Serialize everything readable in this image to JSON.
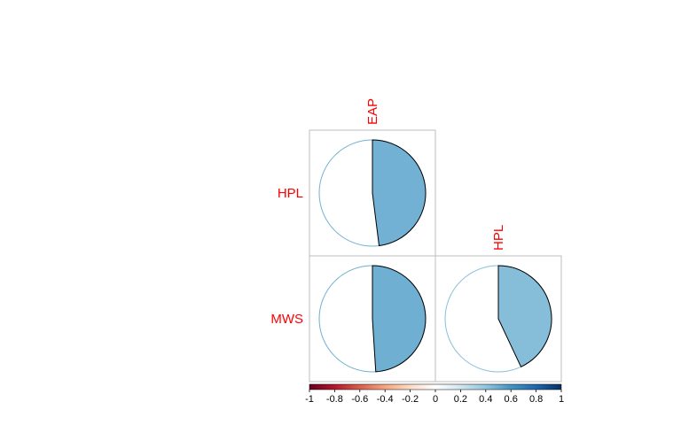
{
  "chart_data": {
    "type": "pie",
    "variant": "correlation-matrix-lower-triangle",
    "variables": [
      "EAP",
      "HPL",
      "MWS"
    ],
    "col_labels": [
      "EAP",
      "HPL"
    ],
    "row_labels": [
      "HPL",
      "MWS"
    ],
    "cells": [
      {
        "row": "HPL",
        "col": "EAP",
        "value": 0.48
      },
      {
        "row": "MWS",
        "col": "EAP",
        "value": 0.49
      },
      {
        "row": "MWS",
        "col": "HPL",
        "value": 0.43
      }
    ],
    "colorbar": {
      "range": [
        -1,
        1
      ],
      "ticks": [
        "-1",
        "-0.8",
        "-0.6",
        "-0.4",
        "-0.2",
        "0",
        "0.2",
        "0.4",
        "0.6",
        "0.8",
        "1"
      ],
      "colors": [
        "#67001f",
        "#b2182b",
        "#d6604d",
        "#f4a582",
        "#fddbc7",
        "#ffffff",
        "#d1e5f0",
        "#92c5de",
        "#4393c3",
        "#2166ac",
        "#053061"
      ],
      "placement": "bottom"
    },
    "label_color": "#ff0000",
    "grid_color": "#bebebe"
  }
}
